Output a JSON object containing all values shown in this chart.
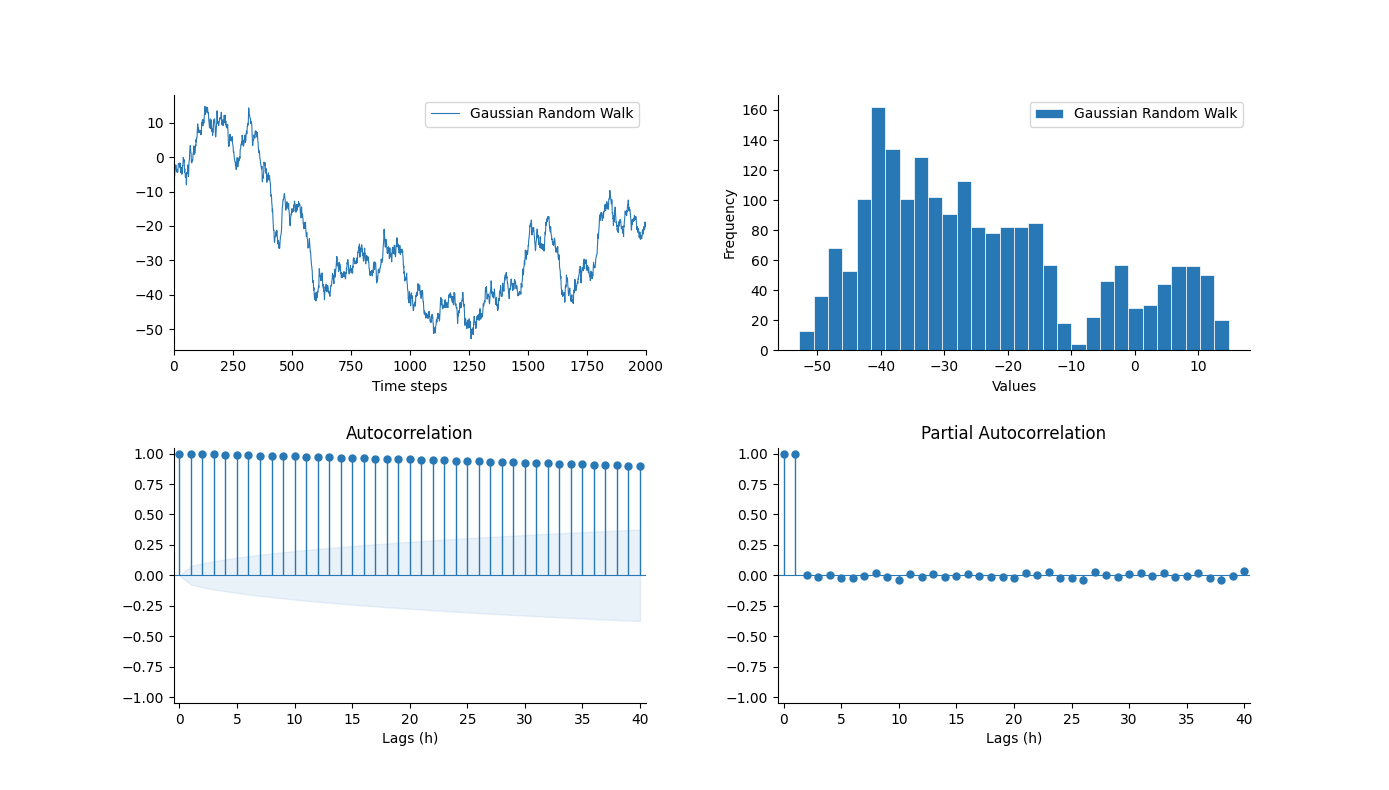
{
  "n_steps": 2000,
  "random_seed": 5,
  "line_color": "#2878b5",
  "hist_color": "#2878b5",
  "acf_color": "#2878b5",
  "pacf_color": "#2878b5",
  "conf_fill_color": "#a8c8e8",
  "n_lags": 40,
  "title_acf": "Autocorrelation",
  "title_pacf": "Partial Autocorrelation",
  "xlabel_time": "Time steps",
  "xlabel_hist": "Values",
  "xlabel_acf": "Lags (h)",
  "xlabel_pacf": "Lags (h)",
  "ylabel_hist": "Frequency",
  "legend_label": "Gaussian Random Walk",
  "hist_bins": 30,
  "figsize": [
    13.89,
    7.9
  ],
  "dpi": 100
}
